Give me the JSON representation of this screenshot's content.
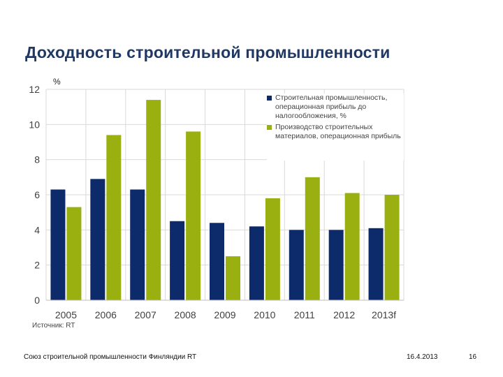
{
  "slide": {
    "title": "Доходность строительной промышленности",
    "source": "Источник: RT",
    "footer_org": "Союз строительной промышленности Финляндии RT",
    "footer_date": "16.4.2013",
    "page_number": "16"
  },
  "chart_data": {
    "type": "bar",
    "unit_label": "%",
    "categories": [
      "2005",
      "2006",
      "2007",
      "2008",
      "2009",
      "2010",
      "2011",
      "2012",
      "2013f"
    ],
    "series": [
      {
        "name": "Строительная промышленность, операционная прибыль до налогообложения, %",
        "color": "#0d2b6b",
        "values": [
          6.3,
          6.9,
          6.3,
          4.5,
          4.4,
          4.2,
          4.0,
          4.0,
          4.1
        ]
      },
      {
        "name": "Производство строительных материалов, операционная прибыль",
        "color": "#9ab010",
        "values": [
          5.3,
          9.4,
          11.4,
          9.6,
          2.5,
          5.8,
          7.0,
          6.1,
          6.0
        ]
      }
    ],
    "yticks": [
      "0",
      "2",
      "4",
      "6",
      "8",
      "10",
      "12"
    ],
    "ylim": [
      0,
      12
    ],
    "grid": true,
    "legend_position": "top-right"
  }
}
